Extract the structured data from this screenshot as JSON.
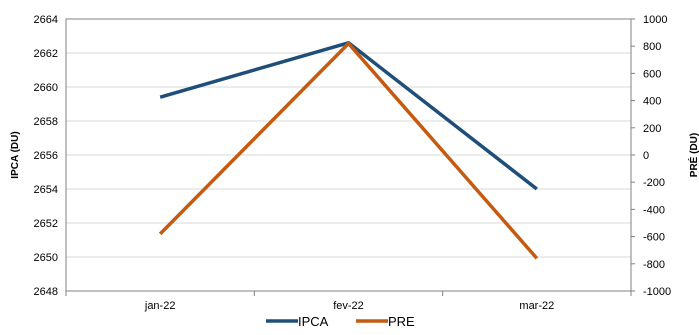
{
  "chart_data": {
    "type": "line",
    "categories": [
      "jan-22",
      "fev-22",
      "mar-22"
    ],
    "series": [
      {
        "name": "IPCA",
        "axis": "left",
        "color": "#1f4e79",
        "values": [
          2659.4,
          2662.6,
          2654.0
        ]
      },
      {
        "name": "PRE",
        "axis": "right",
        "color": "#c55a11",
        "values": [
          -580,
          820,
          -760
        ]
      }
    ],
    "ylabel": "IPCA (DU)",
    "y2label": "PRÉ (DU)",
    "ylim": [
      2648,
      2664
    ],
    "y2lim": [
      -1000,
      1000
    ],
    "yticks": [
      "2648",
      "2650",
      "2652",
      "2654",
      "2656",
      "2658",
      "2660",
      "2662",
      "2664"
    ],
    "y2ticks": [
      "-1000",
      "-800",
      "-600",
      "-400",
      "-200",
      "0",
      "200",
      "400",
      "600",
      "800",
      "1000"
    ],
    "grid": true,
    "legend": "bottom"
  }
}
